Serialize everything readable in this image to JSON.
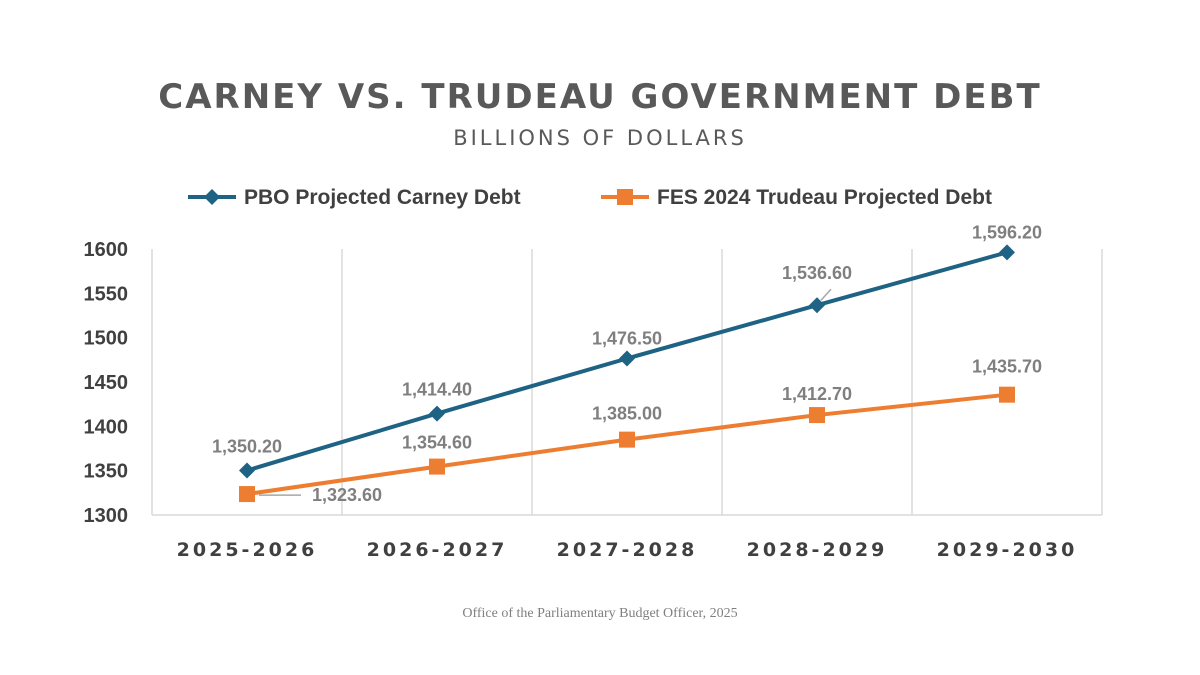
{
  "chart_data": {
    "type": "line",
    "title": "CARNEY VS. TRUDEAU GOVERNMENT DEBT",
    "subtitle": "BILLIONS OF DOLLARS",
    "categories": [
      "2025-2026",
      "2026-2027",
      "2027-2028",
      "2028-2029",
      "2029-2030"
    ],
    "series": [
      {
        "name": "PBO Projected Carney Debt",
        "values": [
          1350.2,
          1414.4,
          1476.5,
          1536.6,
          1596.2
        ],
        "labels": [
          "1,350.20",
          "1,414.40",
          "1,476.50",
          "1,536.60",
          "1,596.20"
        ],
        "color": "#1f6384",
        "marker": "diamond"
      },
      {
        "name": "FES 2024 Trudeau Projected Debt",
        "values": [
          1323.6,
          1354.6,
          1385.0,
          1412.7,
          1435.7
        ],
        "labels": [
          "1,323.60",
          "1,354.60",
          "1,385.00",
          "1,412.70",
          "1,435.70"
        ],
        "color": "#ed7d31",
        "marker": "square"
      }
    ],
    "ylim": [
      1300,
      1600
    ],
    "yticks": [
      "1300",
      "1350",
      "1400",
      "1450",
      "1500",
      "1550",
      "1600"
    ],
    "ytick_values": [
      1300,
      1350,
      1400,
      1450,
      1500,
      1550,
      1600
    ],
    "grid": "vertical",
    "legend": "top"
  },
  "source": "Office of the Parliamentary Budget Officer, 2025"
}
